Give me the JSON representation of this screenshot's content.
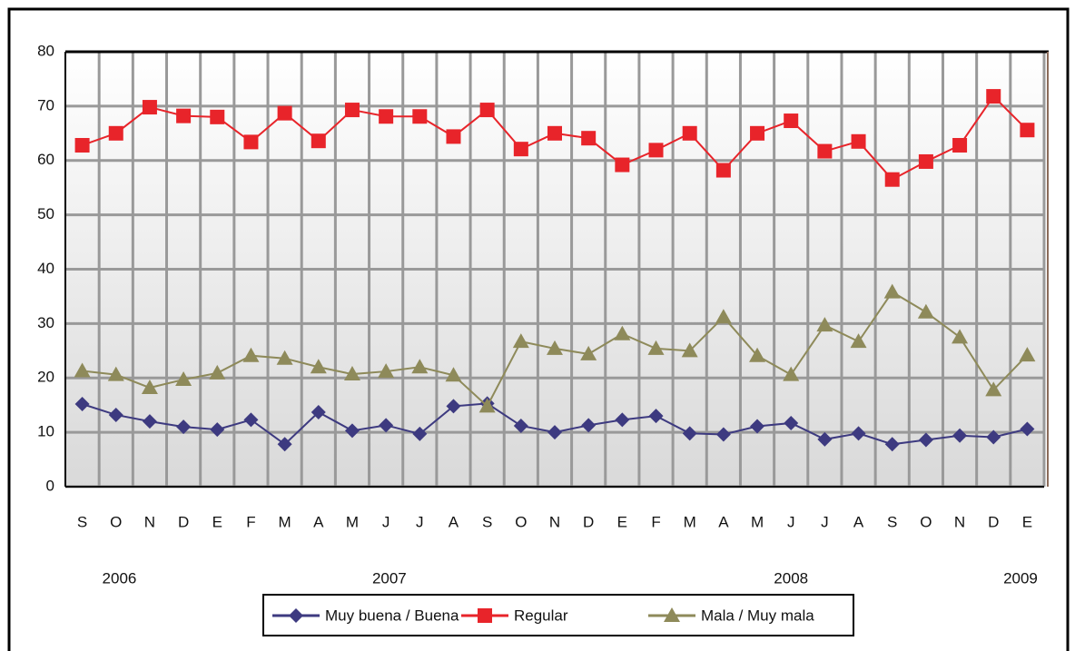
{
  "chart_data": {
    "type": "line",
    "categories": [
      "S",
      "O",
      "N",
      "D",
      "E",
      "F",
      "M",
      "A",
      "M",
      "J",
      "J",
      "A",
      "S",
      "O",
      "N",
      "D",
      "E",
      "F",
      "M",
      "A",
      "M",
      "J",
      "J",
      "A",
      "S",
      "O",
      "N",
      "D",
      "E"
    ],
    "years": [
      "2006",
      "2007",
      "2008",
      "2009"
    ],
    "series": [
      {
        "name": "Muy buena / Buena",
        "color": "#3d3a80",
        "marker": "diamond",
        "values": [
          15.2,
          13.2,
          12,
          11,
          10.5,
          12.3,
          7.8,
          13.7,
          10.3,
          11.3,
          9.7,
          14.8,
          15.3,
          11.2,
          10,
          11.3,
          12.3,
          13,
          9.8,
          9.6,
          11.1,
          11.7,
          8.7,
          9.8,
          7.8,
          8.6,
          9.4,
          9.1,
          10.6
        ]
      },
      {
        "name": "Regular",
        "color": "#e8242a",
        "marker": "square",
        "values": [
          62.8,
          65,
          69.8,
          68.2,
          68,
          63.4,
          68.7,
          63.6,
          69.3,
          68.1,
          68.1,
          64.4,
          69.3,
          62.1,
          65,
          64.1,
          59.2,
          61.9,
          65,
          58.2,
          65,
          67.3,
          61.7,
          63.5,
          56.5,
          59.8,
          62.8,
          71.8,
          65.6
        ]
      },
      {
        "name": "Mala / Muy mala",
        "color": "#8e8a5a",
        "marker": "triangle",
        "values": [
          21.3,
          20.6,
          18.2,
          19.7,
          20.9,
          24.1,
          23.6,
          22,
          20.7,
          21.2,
          22,
          20.5,
          14.8,
          26.7,
          25.4,
          24.4,
          28.1,
          25.4,
          25,
          31.2,
          24.1,
          20.6,
          29.7,
          26.7,
          35.8,
          32.1,
          27.5,
          17.8,
          24.2
        ]
      }
    ],
    "ylim": [
      0,
      80
    ],
    "yticks": [
      0,
      10,
      20,
      30,
      40,
      50,
      60,
      70,
      80
    ],
    "grid": true,
    "legend": "bottom"
  }
}
